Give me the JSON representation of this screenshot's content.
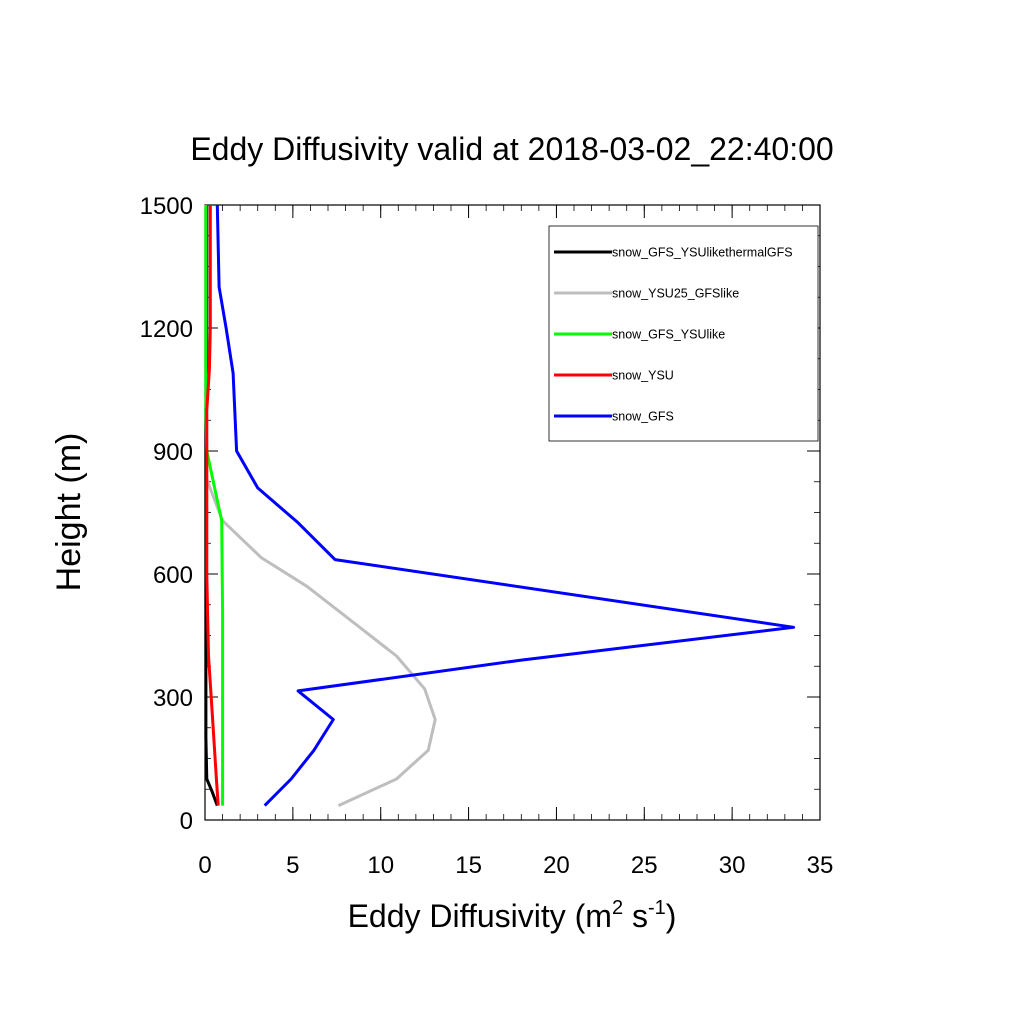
{
  "chart_data": {
    "type": "line",
    "title": "Eddy Diffusivity valid at 2018-03-02_22:40:00",
    "xlabel": {
      "main": "Eddy Diffusivity (m",
      "sup1": "2",
      "mid": " s",
      "sup2": "-1",
      "end": ")"
    },
    "ylabel": "Height (m)",
    "xlim": [
      0,
      35
    ],
    "ylim": [
      0,
      1500
    ],
    "xticks": [
      0,
      5,
      10,
      15,
      20,
      25,
      30,
      35
    ],
    "yticks": [
      0,
      300,
      600,
      900,
      1200,
      1500
    ],
    "legend_position": "top-right",
    "series": [
      {
        "name": "snow_GFS_YSUlikethermalGFS",
        "color": "#000000",
        "points": [
          [
            0.7,
            35
          ],
          [
            0.4,
            70
          ],
          [
            0.1,
            100
          ],
          [
            0.05,
            200
          ],
          [
            0.05,
            400
          ],
          [
            0.05,
            600
          ],
          [
            0.05,
            800
          ],
          [
            0.05,
            1000
          ],
          [
            0.1,
            1100
          ],
          [
            0.1,
            1300
          ],
          [
            0.1,
            1500
          ]
        ]
      },
      {
        "name": "snow_YSU25_GFSlike",
        "color": "#bebebe",
        "points": [
          [
            7.6,
            35
          ],
          [
            10.9,
            100
          ],
          [
            12.7,
            170
          ],
          [
            13.1,
            245
          ],
          [
            12.5,
            320
          ],
          [
            10.9,
            400
          ],
          [
            8.5,
            480
          ],
          [
            5.8,
            570
          ],
          [
            3.2,
            640
          ],
          [
            1.0,
            730
          ],
          [
            0.1,
            830
          ]
        ]
      },
      {
        "name": "snow_GFS_YSUlike",
        "color": "#00ff00",
        "points": [
          [
            1.0,
            35
          ],
          [
            1.0,
            200
          ],
          [
            1.0,
            500
          ],
          [
            0.95,
            730
          ],
          [
            0.6,
            800
          ],
          [
            0.1,
            900
          ],
          [
            0.05,
            1000
          ],
          [
            0.05,
            1500
          ]
        ]
      },
      {
        "name": "snow_YSU",
        "color": "#ff0000",
        "points": [
          [
            0.75,
            35
          ],
          [
            0.65,
            100
          ],
          [
            0.5,
            200
          ],
          [
            0.35,
            300
          ],
          [
            0.2,
            400
          ],
          [
            0.15,
            500
          ],
          [
            0.1,
            600
          ],
          [
            0.1,
            800
          ],
          [
            0.1,
            1000
          ],
          [
            0.25,
            1100
          ],
          [
            0.3,
            1200
          ],
          [
            0.3,
            1500
          ]
        ]
      },
      {
        "name": "snow_GFS",
        "color": "#0000ff",
        "points": [
          [
            3.4,
            35
          ],
          [
            4.9,
            100
          ],
          [
            6.2,
            170
          ],
          [
            7.3,
            245
          ],
          [
            5.3,
            315
          ],
          [
            18.0,
            390
          ],
          [
            33.5,
            470
          ],
          [
            7.4,
            635
          ],
          [
            5.3,
            725
          ],
          [
            3.0,
            810
          ],
          [
            1.8,
            900
          ],
          [
            1.6,
            1090
          ],
          [
            1.2,
            1200
          ],
          [
            0.8,
            1300
          ],
          [
            0.7,
            1500
          ]
        ]
      }
    ]
  }
}
